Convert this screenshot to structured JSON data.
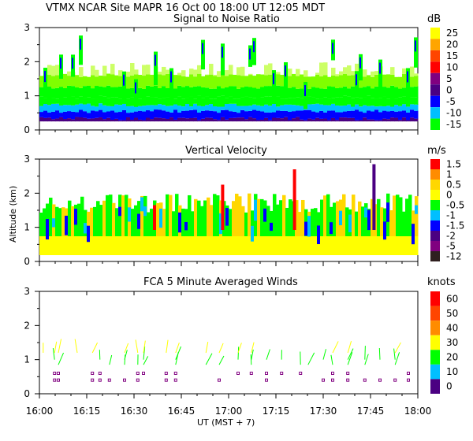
{
  "header": "VTMX  NCAR Site  MAPR 16 Oct 00  18:00 UT  12:05  MDT",
  "y_axis_label": "Altitude (km)",
  "x_axis_label": "UT  (MST + 7)",
  "x_ticks": [
    "16:00",
    "16:15",
    "16:30",
    "16:45",
    "17:00",
    "17:15",
    "17:30",
    "17:45",
    "18:00"
  ],
  "chart_data": [
    {
      "type": "heatmap",
      "title": "Signal to Noise Ratio",
      "unit": "dB",
      "xlim": [
        16.0,
        18.0
      ],
      "ylim": [
        0,
        3
      ],
      "y_ticks": [
        0,
        1,
        2,
        3
      ],
      "scale_labels": [
        "25",
        "20",
        "15",
        "10",
        "5",
        "0",
        "-5",
        "-10",
        "-15"
      ],
      "scale_colors": [
        "#ffff00",
        "#ffa500",
        "#ff4500",
        "#ff0000",
        "#800080",
        "#4b0082",
        "#0000ff",
        "#00bfff",
        "#00ff00"
      ]
    },
    {
      "type": "heatmap",
      "title": "Vertical Velocity",
      "unit": "m/s",
      "xlim": [
        16.0,
        18.0
      ],
      "ylim": [
        0,
        3
      ],
      "y_ticks": [
        0,
        1,
        2,
        3
      ],
      "scale_labels": [
        "1.5",
        "1",
        "0.5",
        "0",
        "-0.5",
        "-1",
        "-1.5",
        "-2",
        "-5",
        "-12"
      ],
      "scale_colors": [
        "#ff0000",
        "#ff8c00",
        "#ffd700",
        "#ffff00",
        "#00ff00",
        "#00bfff",
        "#0000ff",
        "#4b0082",
        "#800080",
        "#2f1f1f"
      ]
    },
    {
      "type": "scatter",
      "title": "FCA 5 Minute Averaged Winds",
      "unit": "knots",
      "xlim": [
        16.0,
        18.0
      ],
      "ylim": [
        0,
        3
      ],
      "y_ticks": [
        0,
        1,
        2,
        3
      ],
      "scale_labels": [
        "60",
        "50",
        "40",
        "30",
        "20",
        "10",
        "0"
      ],
      "scale_colors": [
        "#ff0000",
        "#ff4500",
        "#ff8c00",
        "#ffff00",
        "#00ff00",
        "#00bfff",
        "#4b0082"
      ],
      "wind_times_hr": [
        16.02,
        16.08,
        16.1,
        16.2,
        16.28,
        16.32,
        16.37,
        16.45,
        16.52,
        16.55,
        16.67,
        16.72,
        16.88,
        16.95,
        17.05,
        17.12,
        17.2,
        17.28,
        17.38,
        17.42,
        17.5,
        17.55,
        17.63,
        17.72,
        17.8,
        17.88,
        17.95
      ],
      "barb_heights_km": [
        0.4,
        0.6,
        0.85,
        1.0,
        1.2
      ],
      "barb_speeds_knots": [
        5,
        12,
        20,
        28,
        35
      ]
    }
  ]
}
